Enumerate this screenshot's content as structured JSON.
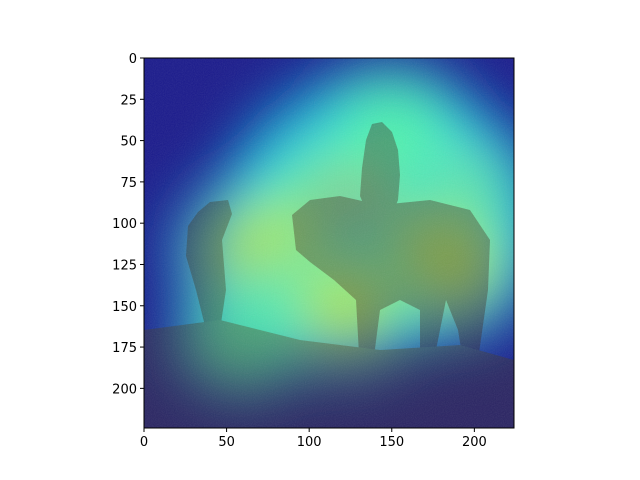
{
  "chart_data": {
    "type": "heatmap",
    "title": "",
    "xlabel": "",
    "ylabel": "",
    "xlim": [
      0,
      224
    ],
    "ylim": [
      224,
      0
    ],
    "x_ticks": [
      0,
      50,
      100,
      150,
      200
    ],
    "y_ticks": [
      0,
      25,
      50,
      75,
      100,
      125,
      150,
      175,
      200
    ],
    "grid": false,
    "colormap": "jet",
    "underlying_image": "sepia scene of a rider on horseback with two horses and a person standing at left",
    "hotspots": [
      {
        "x": 140,
        "y": 80,
        "intensity": 1.0
      },
      {
        "x": 165,
        "y": 92,
        "intensity": 0.95
      },
      {
        "x": 118,
        "y": 96,
        "intensity": 0.85
      },
      {
        "x": 78,
        "y": 118,
        "intensity": 0.72
      },
      {
        "x": 178,
        "y": 125,
        "intensity": 0.7
      },
      {
        "x": 120,
        "y": 150,
        "intensity": 0.62
      },
      {
        "x": 60,
        "y": 170,
        "intensity": 0.5
      },
      {
        "x": 150,
        "y": 40,
        "intensity": 0.55
      }
    ]
  },
  "colors": {
    "axis": "#000000",
    "background": "#ffffff",
    "cold": "#00007f",
    "hot": "#7f0000"
  }
}
